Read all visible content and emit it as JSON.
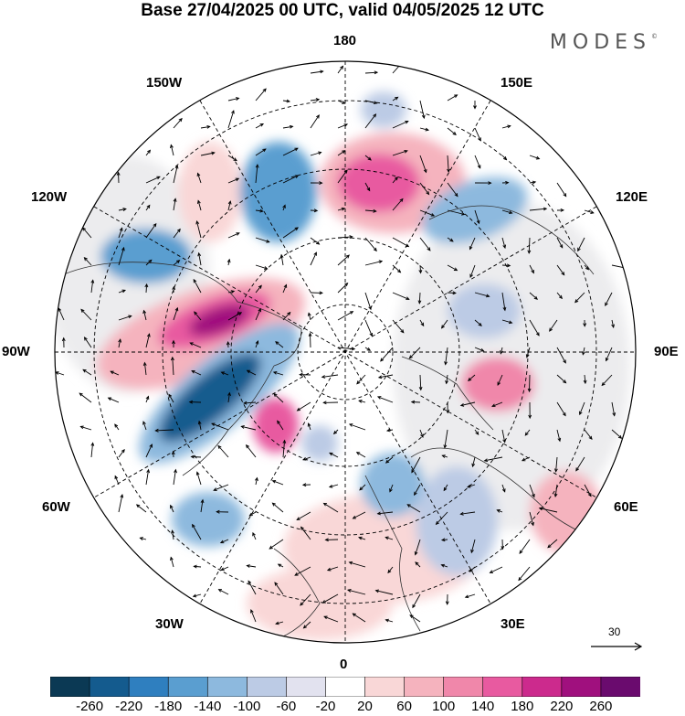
{
  "header": {
    "title": "Base 27/04/2025 00 UTC, valid 04/05/2025 12 UTC"
  },
  "brand": {
    "name": "MODES",
    "mark": "©"
  },
  "map": {
    "projection": "north-polar-stereographic",
    "longitude_labels": {
      "top": "180",
      "bottom": "0",
      "left": "90W",
      "right": "90E",
      "ul_150": "150W",
      "ul_120": "120W",
      "ur_150": "150E",
      "ur_120": "120E",
      "ll_60": "60W",
      "ll_30": "30W",
      "lr_60": "60E",
      "lr_30": "30E"
    },
    "reference_vector": "30"
  },
  "legend": {
    "colors": [
      "#0b3954",
      "#145b8e",
      "#2f7fbf",
      "#5a9ed0",
      "#8db9de",
      "#bccbe5",
      "#e2e2ef",
      "#ffffff",
      "#f9d7d7",
      "#f5b3be",
      "#f087aa",
      "#e85aa0",
      "#cc2a8d",
      "#a0107e",
      "#6a0b6e"
    ],
    "tick_labels": [
      "-260",
      "-220",
      "-180",
      "-140",
      "-100",
      "-60",
      "-20",
      "20",
      "60",
      "100",
      "140",
      "180",
      "220",
      "260"
    ]
  }
}
